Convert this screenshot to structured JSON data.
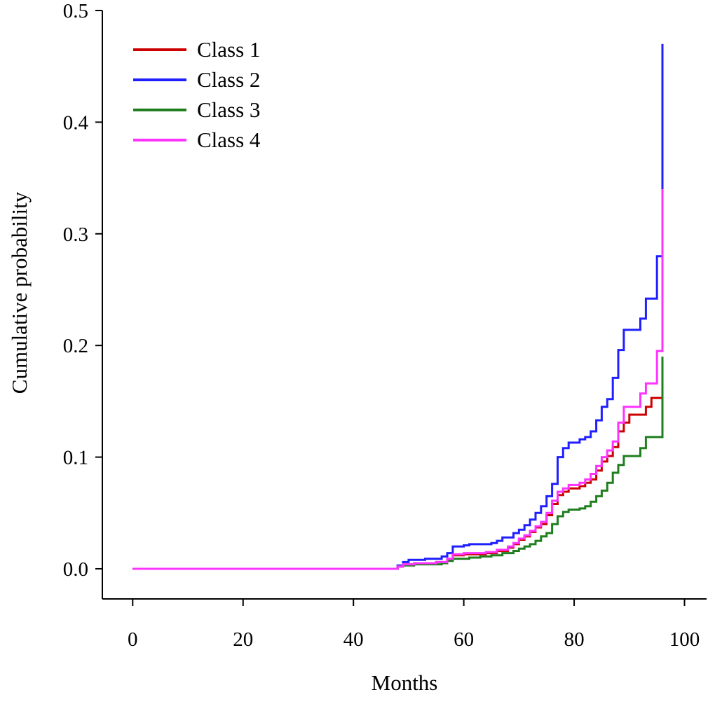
{
  "chart_data": {
    "type": "line",
    "step": true,
    "title": "",
    "xlabel": "Months",
    "ylabel": "Cumulative probability",
    "xlim": [
      -5.5,
      104
    ],
    "ylim": [
      -0.027,
      0.5
    ],
    "xticks": [
      0,
      20,
      40,
      60,
      80,
      100
    ],
    "xtick_labels": [
      "0",
      "20",
      "40",
      "60",
      "80",
      "100"
    ],
    "yticks": [
      0.0,
      0.1,
      0.2,
      0.3,
      0.4,
      0.5
    ],
    "ytick_labels": [
      "0.0",
      "0.1",
      "0.2",
      "0.3",
      "0.4",
      "0.5"
    ],
    "grid": false,
    "legend_position": "top-left",
    "series": [
      {
        "name": "Class 1",
        "label": "Class 1",
        "color": "#cc0000",
        "points": [
          [
            0,
            0
          ],
          [
            47,
            0
          ],
          [
            48,
            0.002
          ],
          [
            49,
            0.004
          ],
          [
            51,
            0.005
          ],
          [
            55,
            0.006
          ],
          [
            57,
            0.008
          ],
          [
            58,
            0.012
          ],
          [
            60,
            0.013
          ],
          [
            64,
            0.014
          ],
          [
            66,
            0.016
          ],
          [
            68,
            0.019
          ],
          [
            69,
            0.022
          ],
          [
            70,
            0.026
          ],
          [
            71,
            0.029
          ],
          [
            72,
            0.033
          ],
          [
            73,
            0.037
          ],
          [
            74,
            0.04
          ],
          [
            75,
            0.048
          ],
          [
            76,
            0.058
          ],
          [
            77,
            0.066
          ],
          [
            78,
            0.069
          ],
          [
            79,
            0.072
          ],
          [
            81,
            0.074
          ],
          [
            82,
            0.077
          ],
          [
            83,
            0.08
          ],
          [
            84,
            0.088
          ],
          [
            85,
            0.096
          ],
          [
            86,
            0.101
          ],
          [
            87,
            0.109
          ],
          [
            88,
            0.123
          ],
          [
            89,
            0.131
          ],
          [
            90,
            0.138
          ],
          [
            93,
            0.145
          ],
          [
            94,
            0.153
          ],
          [
            96,
            0.188
          ]
        ]
      },
      {
        "name": "Class 2",
        "label": "Class 2",
        "color": "#1f1fff",
        "points": [
          [
            0,
            0
          ],
          [
            47,
            0
          ],
          [
            48,
            0.003
          ],
          [
            49,
            0.006
          ],
          [
            50,
            0.008
          ],
          [
            53,
            0.009
          ],
          [
            56,
            0.011
          ],
          [
            57,
            0.014
          ],
          [
            58,
            0.02
          ],
          [
            60,
            0.021
          ],
          [
            61,
            0.022
          ],
          [
            65,
            0.023
          ],
          [
            66,
            0.025
          ],
          [
            67,
            0.028
          ],
          [
            69,
            0.032
          ],
          [
            70,
            0.035
          ],
          [
            71,
            0.039
          ],
          [
            72,
            0.044
          ],
          [
            73,
            0.05
          ],
          [
            74,
            0.056
          ],
          [
            75,
            0.065
          ],
          [
            76,
            0.076
          ],
          [
            77,
            0.1
          ],
          [
            78,
            0.108
          ],
          [
            79,
            0.113
          ],
          [
            81,
            0.116
          ],
          [
            82,
            0.118
          ],
          [
            83,
            0.123
          ],
          [
            84,
            0.133
          ],
          [
            85,
            0.145
          ],
          [
            86,
            0.152
          ],
          [
            87,
            0.171
          ],
          [
            88,
            0.196
          ],
          [
            89,
            0.214
          ],
          [
            92,
            0.224
          ],
          [
            93,
            0.242
          ],
          [
            95,
            0.28
          ],
          [
            96,
            0.47
          ]
        ]
      },
      {
        "name": "Class 3",
        "label": "Class 3",
        "color": "#1f7f1f",
        "points": [
          [
            0,
            0
          ],
          [
            47,
            0
          ],
          [
            48,
            0.002
          ],
          [
            49,
            0.003
          ],
          [
            51,
            0.004
          ],
          [
            56,
            0.005
          ],
          [
            57,
            0.007
          ],
          [
            58,
            0.009
          ],
          [
            61,
            0.01
          ],
          [
            63,
            0.011
          ],
          [
            65,
            0.012
          ],
          [
            67,
            0.014
          ],
          [
            69,
            0.016
          ],
          [
            70,
            0.018
          ],
          [
            71,
            0.02
          ],
          [
            72,
            0.022
          ],
          [
            73,
            0.025
          ],
          [
            74,
            0.029
          ],
          [
            75,
            0.032
          ],
          [
            76,
            0.04
          ],
          [
            77,
            0.047
          ],
          [
            78,
            0.051
          ],
          [
            79,
            0.053
          ],
          [
            81,
            0.054
          ],
          [
            82,
            0.056
          ],
          [
            83,
            0.06
          ],
          [
            84,
            0.065
          ],
          [
            85,
            0.07
          ],
          [
            86,
            0.077
          ],
          [
            87,
            0.086
          ],
          [
            88,
            0.093
          ],
          [
            89,
            0.101
          ],
          [
            92,
            0.108
          ],
          [
            93,
            0.118
          ],
          [
            96,
            0.19
          ]
        ]
      },
      {
        "name": "Class 4",
        "label": "Class 4",
        "color": "#ff33ff",
        "points": [
          [
            0,
            0
          ],
          [
            47,
            0
          ],
          [
            48,
            0.002
          ],
          [
            49,
            0.004
          ],
          [
            51,
            0.005
          ],
          [
            55,
            0.006
          ],
          [
            57,
            0.009
          ],
          [
            58,
            0.013
          ],
          [
            60,
            0.014
          ],
          [
            64,
            0.015
          ],
          [
            66,
            0.017
          ],
          [
            68,
            0.02
          ],
          [
            69,
            0.023
          ],
          [
            70,
            0.027
          ],
          [
            71,
            0.03
          ],
          [
            72,
            0.034
          ],
          [
            73,
            0.038
          ],
          [
            74,
            0.042
          ],
          [
            75,
            0.05
          ],
          [
            76,
            0.061
          ],
          [
            77,
            0.069
          ],
          [
            78,
            0.072
          ],
          [
            79,
            0.075
          ],
          [
            81,
            0.077
          ],
          [
            82,
            0.08
          ],
          [
            83,
            0.085
          ],
          [
            84,
            0.092
          ],
          [
            85,
            0.1
          ],
          [
            86,
            0.106
          ],
          [
            87,
            0.114
          ],
          [
            88,
            0.131
          ],
          [
            89,
            0.145
          ],
          [
            90,
            0.145
          ],
          [
            92,
            0.157
          ],
          [
            93,
            0.166
          ],
          [
            95,
            0.195
          ],
          [
            96,
            0.34
          ]
        ]
      }
    ]
  }
}
